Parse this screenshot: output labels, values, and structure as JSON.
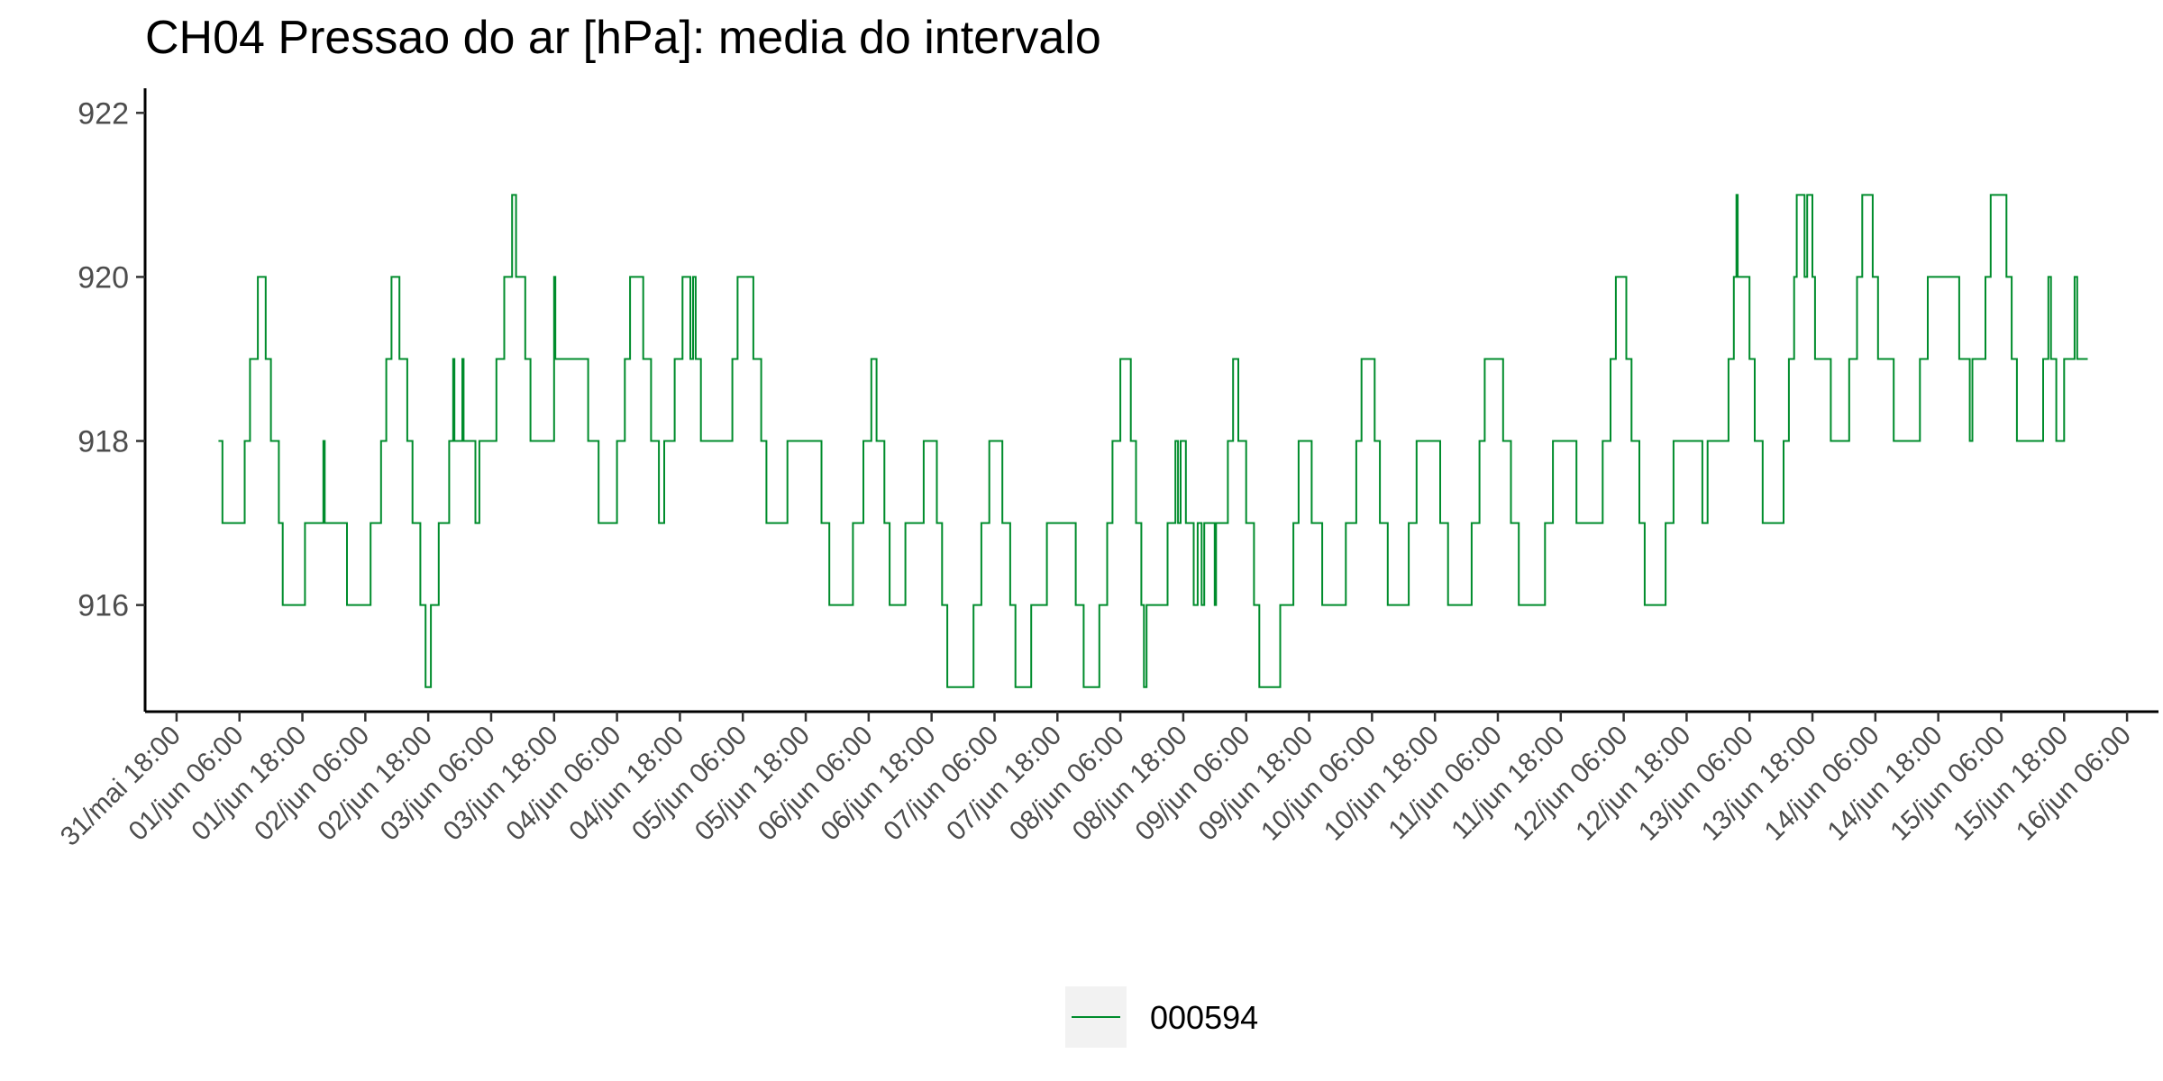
{
  "chart_data": {
    "type": "line",
    "line_style": "step",
    "title": "CH04 Pressao do ar [hPa]: media do intervalo",
    "xlabel": "",
    "ylabel": "",
    "xlim": [
      "2021-05-31T12:00",
      "2021-06-16T12:00"
    ],
    "ylim": [
      914.7,
      922.3
    ],
    "yticks": [
      916,
      918,
      920,
      922
    ],
    "xticks": [
      {
        "t": "2021-05-31T18:00",
        "label": "31/mai 18:00"
      },
      {
        "t": "2021-06-01T06:00",
        "label": "01/jun 06:00"
      },
      {
        "t": "2021-06-01T18:00",
        "label": "01/jun 18:00"
      },
      {
        "t": "2021-06-02T06:00",
        "label": "02/jun 06:00"
      },
      {
        "t": "2021-06-02T18:00",
        "label": "02/jun 18:00"
      },
      {
        "t": "2021-06-03T06:00",
        "label": "03/jun 06:00"
      },
      {
        "t": "2021-06-03T18:00",
        "label": "03/jun 18:00"
      },
      {
        "t": "2021-06-04T06:00",
        "label": "04/jun 06:00"
      },
      {
        "t": "2021-06-04T18:00",
        "label": "04/jun 18:00"
      },
      {
        "t": "2021-06-05T06:00",
        "label": "05/jun 06:00"
      },
      {
        "t": "2021-06-05T18:00",
        "label": "05/jun 18:00"
      },
      {
        "t": "2021-06-06T06:00",
        "label": "06/jun 06:00"
      },
      {
        "t": "2021-06-06T18:00",
        "label": "06/jun 18:00"
      },
      {
        "t": "2021-06-07T06:00",
        "label": "07/jun 06:00"
      },
      {
        "t": "2021-06-07T18:00",
        "label": "07/jun 18:00"
      },
      {
        "t": "2021-06-08T06:00",
        "label": "08/jun 06:00"
      },
      {
        "t": "2021-06-08T18:00",
        "label": "08/jun 18:00"
      },
      {
        "t": "2021-06-09T06:00",
        "label": "09/jun 06:00"
      },
      {
        "t": "2021-06-09T18:00",
        "label": "09/jun 18:00"
      },
      {
        "t": "2021-06-10T06:00",
        "label": "10/jun 06:00"
      },
      {
        "t": "2021-06-10T18:00",
        "label": "10/jun 18:00"
      },
      {
        "t": "2021-06-11T06:00",
        "label": "11/jun 06:00"
      },
      {
        "t": "2021-06-11T18:00",
        "label": "11/jun 18:00"
      },
      {
        "t": "2021-06-12T06:00",
        "label": "12/jun 06:00"
      },
      {
        "t": "2021-06-12T18:00",
        "label": "12/jun 18:00"
      },
      {
        "t": "2021-06-13T06:00",
        "label": "13/jun 06:00"
      },
      {
        "t": "2021-06-13T18:00",
        "label": "13/jun 18:00"
      },
      {
        "t": "2021-06-14T06:00",
        "label": "14/jun 06:00"
      },
      {
        "t": "2021-06-14T18:00",
        "label": "14/jun 18:00"
      },
      {
        "t": "2021-06-15T06:00",
        "label": "15/jun 06:00"
      },
      {
        "t": "2021-06-15T18:00",
        "label": "15/jun 18:00"
      },
      {
        "t": "2021-06-16T06:00",
        "label": "16/jun 06:00"
      }
    ],
    "legend_position": "bottom",
    "grid": false,
    "series": [
      {
        "name": "000594",
        "color": "#008c2c",
        "points": [
          [
            "2021-06-01T02:00",
            918
          ],
          [
            "2021-06-01T02:45",
            917
          ],
          [
            "2021-06-01T07:00",
            918
          ],
          [
            "2021-06-01T08:00",
            919
          ],
          [
            "2021-06-01T09:30",
            920
          ],
          [
            "2021-06-01T11:00",
            919
          ],
          [
            "2021-06-01T12:00",
            918
          ],
          [
            "2021-06-01T13:30",
            917
          ],
          [
            "2021-06-01T14:15",
            916
          ],
          [
            "2021-06-01T18:30",
            917
          ],
          [
            "2021-06-01T22:00",
            918
          ],
          [
            "2021-06-01T22:15",
            917
          ],
          [
            "2021-06-02T02:30",
            916
          ],
          [
            "2021-06-02T07:00",
            917
          ],
          [
            "2021-06-02T09:00",
            918
          ],
          [
            "2021-06-02T10:00",
            919
          ],
          [
            "2021-06-02T11:00",
            920
          ],
          [
            "2021-06-02T12:30",
            919
          ],
          [
            "2021-06-02T14:00",
            918
          ],
          [
            "2021-06-02T15:00",
            917
          ],
          [
            "2021-06-02T16:30",
            916
          ],
          [
            "2021-06-02T17:30",
            915
          ],
          [
            "2021-06-02T18:30",
            916
          ],
          [
            "2021-06-02T20:00",
            917
          ],
          [
            "2021-06-02T22:00",
            918
          ],
          [
            "2021-06-02T22:45",
            919
          ],
          [
            "2021-06-02T23:00",
            918
          ],
          [
            "2021-06-03T00:30",
            919
          ],
          [
            "2021-06-03T00:45",
            918
          ],
          [
            "2021-06-03T03:00",
            917
          ],
          [
            "2021-06-03T03:45",
            918
          ],
          [
            "2021-06-03T07:00",
            919
          ],
          [
            "2021-06-03T08:30",
            920
          ],
          [
            "2021-06-03T10:00",
            921
          ],
          [
            "2021-06-03T10:45",
            920
          ],
          [
            "2021-06-03T12:30",
            919
          ],
          [
            "2021-06-03T13:30",
            918
          ],
          [
            "2021-06-03T18:00",
            920
          ],
          [
            "2021-06-03T18:15",
            919
          ],
          [
            "2021-06-04T00:30",
            918
          ],
          [
            "2021-06-04T02:30",
            917
          ],
          [
            "2021-06-04T06:00",
            918
          ],
          [
            "2021-06-04T07:30",
            919
          ],
          [
            "2021-06-04T08:30",
            920
          ],
          [
            "2021-06-04T11:00",
            919
          ],
          [
            "2021-06-04T12:30",
            918
          ],
          [
            "2021-06-04T14:00",
            917
          ],
          [
            "2021-06-04T15:00",
            918
          ],
          [
            "2021-06-04T17:00",
            919
          ],
          [
            "2021-06-04T18:30",
            920
          ],
          [
            "2021-06-04T20:00",
            919
          ],
          [
            "2021-06-04T20:30",
            920
          ],
          [
            "2021-06-04T21:00",
            919
          ],
          [
            "2021-06-04T22:00",
            918
          ],
          [
            "2021-06-05T04:00",
            919
          ],
          [
            "2021-06-05T05:00",
            920
          ],
          [
            "2021-06-05T08:00",
            919
          ],
          [
            "2021-06-05T09:30",
            918
          ],
          [
            "2021-06-05T10:30",
            917
          ],
          [
            "2021-06-05T14:30",
            918
          ],
          [
            "2021-06-05T21:00",
            917
          ],
          [
            "2021-06-05T22:30",
            916
          ],
          [
            "2021-06-06T03:00",
            917
          ],
          [
            "2021-06-06T05:00",
            918
          ],
          [
            "2021-06-06T06:30",
            919
          ],
          [
            "2021-06-06T07:30",
            918
          ],
          [
            "2021-06-06T09:00",
            917
          ],
          [
            "2021-06-06T10:00",
            916
          ],
          [
            "2021-06-06T13:00",
            917
          ],
          [
            "2021-06-06T16:30",
            918
          ],
          [
            "2021-06-06T19:00",
            917
          ],
          [
            "2021-06-06T20:00",
            916
          ],
          [
            "2021-06-06T21:00",
            915
          ],
          [
            "2021-06-07T02:00",
            916
          ],
          [
            "2021-06-07T03:30",
            917
          ],
          [
            "2021-06-07T05:00",
            918
          ],
          [
            "2021-06-07T07:30",
            917
          ],
          [
            "2021-06-07T09:00",
            916
          ],
          [
            "2021-06-07T10:00",
            915
          ],
          [
            "2021-06-07T13:00",
            916
          ],
          [
            "2021-06-07T16:00",
            917
          ],
          [
            "2021-06-07T21:30",
            916
          ],
          [
            "2021-06-07T23:00",
            915
          ],
          [
            "2021-06-08T02:00",
            916
          ],
          [
            "2021-06-08T03:30",
            917
          ],
          [
            "2021-06-08T04:30",
            918
          ],
          [
            "2021-06-08T06:00",
            919
          ],
          [
            "2021-06-08T08:00",
            918
          ],
          [
            "2021-06-08T09:00",
            917
          ],
          [
            "2021-06-08T10:00",
            916
          ],
          [
            "2021-06-08T10:30",
            915
          ],
          [
            "2021-06-08T11:00",
            916
          ],
          [
            "2021-06-08T15:00",
            917
          ],
          [
            "2021-06-08T16:30",
            918
          ],
          [
            "2021-06-08T17:00",
            917
          ],
          [
            "2021-06-08T17:30",
            918
          ],
          [
            "2021-06-08T18:30",
            917
          ],
          [
            "2021-06-08T20:00",
            916
          ],
          [
            "2021-06-08T20:45",
            917
          ],
          [
            "2021-06-08T21:30",
            916
          ],
          [
            "2021-06-08T22:00",
            917
          ],
          [
            "2021-06-09T00:00",
            916
          ],
          [
            "2021-06-09T00:15",
            917
          ],
          [
            "2021-06-09T02:30",
            918
          ],
          [
            "2021-06-09T03:30",
            919
          ],
          [
            "2021-06-09T04:30",
            918
          ],
          [
            "2021-06-09T06:00",
            917
          ],
          [
            "2021-06-09T07:30",
            916
          ],
          [
            "2021-06-09T08:30",
            915
          ],
          [
            "2021-06-09T12:30",
            916
          ],
          [
            "2021-06-09T15:00",
            917
          ],
          [
            "2021-06-09T16:00",
            918
          ],
          [
            "2021-06-09T18:30",
            917
          ],
          [
            "2021-06-09T20:30",
            916
          ],
          [
            "2021-06-10T01:00",
            917
          ],
          [
            "2021-06-10T03:00",
            918
          ],
          [
            "2021-06-10T04:00",
            919
          ],
          [
            "2021-06-10T06:30",
            918
          ],
          [
            "2021-06-10T07:30",
            917
          ],
          [
            "2021-06-10T09:00",
            916
          ],
          [
            "2021-06-10T13:00",
            917
          ],
          [
            "2021-06-10T14:30",
            918
          ],
          [
            "2021-06-10T19:00",
            917
          ],
          [
            "2021-06-10T20:30",
            916
          ],
          [
            "2021-06-11T01:00",
            917
          ],
          [
            "2021-06-11T02:30",
            918
          ],
          [
            "2021-06-11T03:30",
            919
          ],
          [
            "2021-06-11T07:00",
            918
          ],
          [
            "2021-06-11T08:30",
            917
          ],
          [
            "2021-06-11T10:00",
            916
          ],
          [
            "2021-06-11T15:00",
            917
          ],
          [
            "2021-06-11T16:30",
            918
          ],
          [
            "2021-06-11T21:00",
            917
          ],
          [
            "2021-06-12T02:00",
            918
          ],
          [
            "2021-06-12T03:30",
            919
          ],
          [
            "2021-06-12T04:30",
            920
          ],
          [
            "2021-06-12T06:30",
            919
          ],
          [
            "2021-06-12T07:30",
            918
          ],
          [
            "2021-06-12T09:00",
            917
          ],
          [
            "2021-06-12T10:00",
            916
          ],
          [
            "2021-06-12T14:00",
            917
          ],
          [
            "2021-06-12T15:30",
            918
          ],
          [
            "2021-06-12T21:00",
            917
          ],
          [
            "2021-06-12T22:00",
            918
          ],
          [
            "2021-06-13T02:00",
            919
          ],
          [
            "2021-06-13T03:00",
            920
          ],
          [
            "2021-06-13T03:30",
            921
          ],
          [
            "2021-06-13T03:45",
            920
          ],
          [
            "2021-06-13T06:00",
            919
          ],
          [
            "2021-06-13T07:00",
            918
          ],
          [
            "2021-06-13T08:30",
            917
          ],
          [
            "2021-06-13T12:30",
            918
          ],
          [
            "2021-06-13T13:30",
            919
          ],
          [
            "2021-06-13T14:30",
            920
          ],
          [
            "2021-06-13T15:00",
            921
          ],
          [
            "2021-06-13T16:30",
            920
          ],
          [
            "2021-06-13T17:00",
            921
          ],
          [
            "2021-06-13T18:00",
            920
          ],
          [
            "2021-06-13T18:30",
            919
          ],
          [
            "2021-06-13T21:30",
            918
          ],
          [
            "2021-06-14T01:00",
            919
          ],
          [
            "2021-06-14T02:30",
            920
          ],
          [
            "2021-06-14T03:30",
            921
          ],
          [
            "2021-06-14T05:30",
            920
          ],
          [
            "2021-06-14T06:30",
            919
          ],
          [
            "2021-06-14T09:30",
            918
          ],
          [
            "2021-06-14T14:30",
            919
          ],
          [
            "2021-06-14T16:00",
            920
          ],
          [
            "2021-06-14T22:00",
            919
          ],
          [
            "2021-06-15T00:00",
            918
          ],
          [
            "2021-06-15T00:30",
            919
          ],
          [
            "2021-06-15T03:00",
            920
          ],
          [
            "2021-06-15T04:00",
            921
          ],
          [
            "2021-06-15T07:00",
            920
          ],
          [
            "2021-06-15T08:00",
            919
          ],
          [
            "2021-06-15T09:00",
            918
          ],
          [
            "2021-06-15T14:00",
            919
          ],
          [
            "2021-06-15T15:00",
            920
          ],
          [
            "2021-06-15T15:30",
            919
          ],
          [
            "2021-06-15T16:30",
            918
          ],
          [
            "2021-06-15T18:00",
            919
          ],
          [
            "2021-06-15T20:00",
            920
          ],
          [
            "2021-06-15T20:30",
            919
          ],
          [
            "2021-06-15T22:30",
            919
          ]
        ]
      }
    ]
  }
}
